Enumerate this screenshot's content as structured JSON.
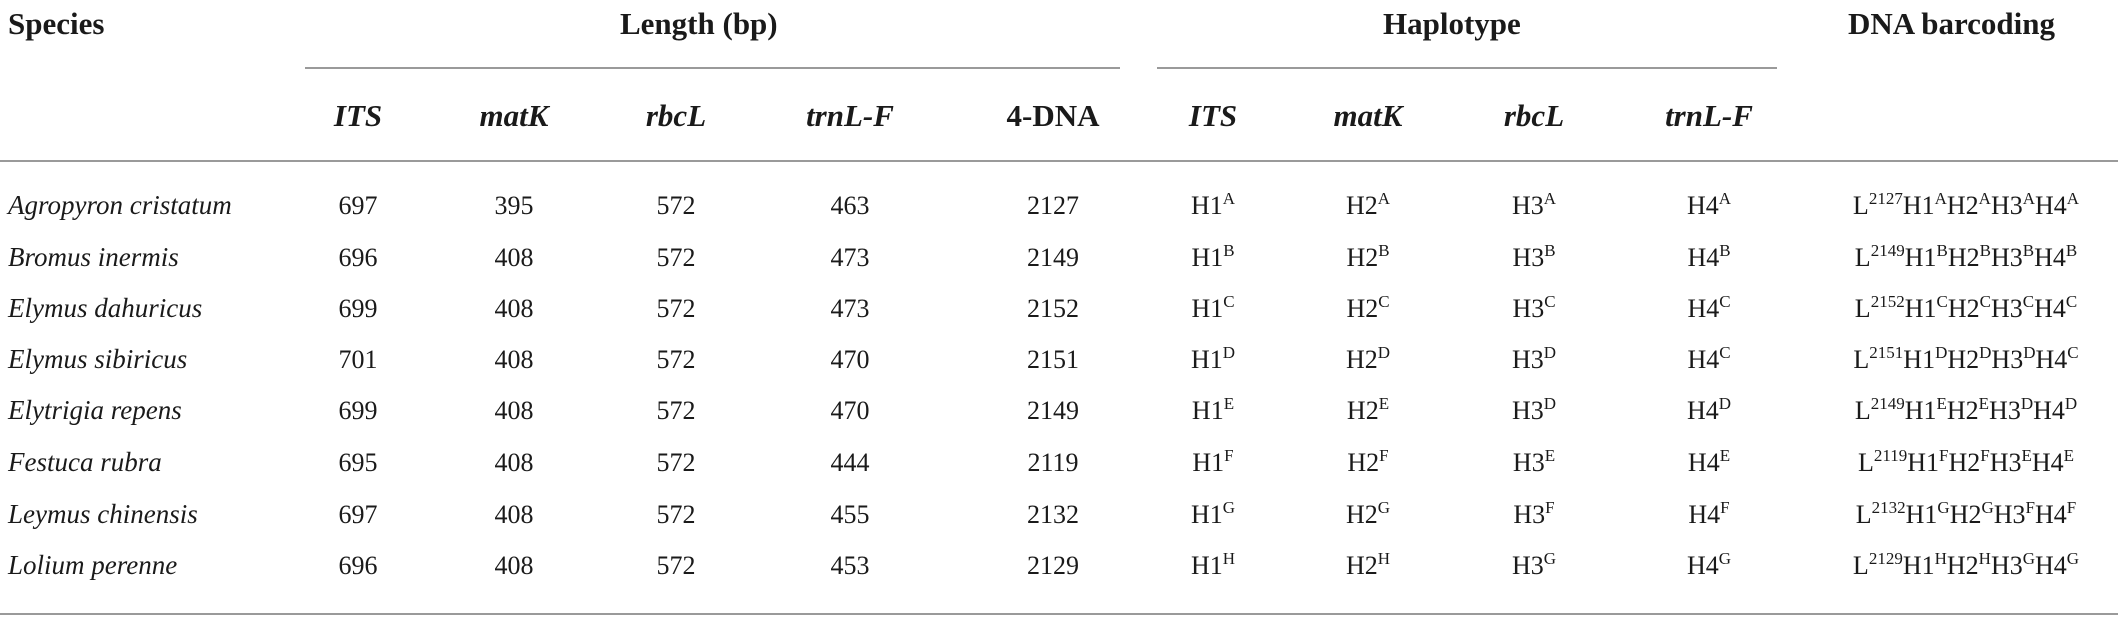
{
  "headers": {
    "species": "Species",
    "length": "Length (bp)",
    "haplotype": "Haplotype",
    "barcoding": "DNA barcoding",
    "length_sub": [
      "ITS",
      "matK",
      "rbcL",
      "trnL-F",
      "4-DNA"
    ],
    "haplotype_sub": [
      "ITS",
      "matK",
      "rbcL",
      "trnL-F"
    ]
  },
  "rows": [
    {
      "species": "Agropyron cristatum",
      "lengths": [
        "697",
        "395",
        "572",
        "463",
        "2127"
      ],
      "haps": [
        [
          "H1",
          "A"
        ],
        [
          "H2",
          "A"
        ],
        [
          "H3",
          "A"
        ],
        [
          "H4",
          "A"
        ]
      ],
      "barcode": [
        [
          "L",
          "2127"
        ],
        [
          "H1",
          "A"
        ],
        [
          "H2",
          "A"
        ],
        [
          "H3",
          "A"
        ],
        [
          "H4",
          "A"
        ]
      ]
    },
    {
      "species": "Bromus inermis",
      "lengths": [
        "696",
        "408",
        "572",
        "473",
        "2149"
      ],
      "haps": [
        [
          "H1",
          "B"
        ],
        [
          "H2",
          "B"
        ],
        [
          "H3",
          "B"
        ],
        [
          "H4",
          "B"
        ]
      ],
      "barcode": [
        [
          "L",
          "2149"
        ],
        [
          "H1",
          "B"
        ],
        [
          "H2",
          "B"
        ],
        [
          "H3",
          "B"
        ],
        [
          "H4",
          "B"
        ]
      ]
    },
    {
      "species": "Elymus dahuricus",
      "lengths": [
        "699",
        "408",
        "572",
        "473",
        "2152"
      ],
      "haps": [
        [
          "H1",
          "C"
        ],
        [
          "H2",
          "C"
        ],
        [
          "H3",
          "C"
        ],
        [
          "H4",
          "C"
        ]
      ],
      "barcode": [
        [
          "L",
          "2152"
        ],
        [
          "H1",
          "C"
        ],
        [
          "H2",
          "C"
        ],
        [
          "H3",
          "C"
        ],
        [
          "H4",
          "C"
        ]
      ]
    },
    {
      "species": "Elymus sibiricus",
      "lengths": [
        "701",
        "408",
        "572",
        "470",
        "2151"
      ],
      "haps": [
        [
          "H1",
          "D"
        ],
        [
          "H2",
          "D"
        ],
        [
          "H3",
          "D"
        ],
        [
          "H4",
          "C"
        ]
      ],
      "barcode": [
        [
          "L",
          "2151"
        ],
        [
          "H1",
          "D"
        ],
        [
          "H2",
          "D"
        ],
        [
          "H3",
          "D"
        ],
        [
          "H4",
          "C"
        ]
      ]
    },
    {
      "species": "Elytrigia repens",
      "lengths": [
        "699",
        "408",
        "572",
        "470",
        "2149"
      ],
      "haps": [
        [
          "H1",
          "E"
        ],
        [
          "H2",
          "E"
        ],
        [
          "H3",
          "D"
        ],
        [
          "H4",
          "D"
        ]
      ],
      "barcode": [
        [
          "L",
          "2149"
        ],
        [
          "H1",
          "E"
        ],
        [
          "H2",
          "E"
        ],
        [
          "H3",
          "D"
        ],
        [
          "H4",
          "D"
        ]
      ]
    },
    {
      "species": "Festuca rubra",
      "lengths": [
        "695",
        "408",
        "572",
        "444",
        "2119"
      ],
      "haps": [
        [
          "H1",
          "F"
        ],
        [
          "H2",
          "F"
        ],
        [
          "H3",
          "E"
        ],
        [
          "H4",
          "E"
        ]
      ],
      "barcode": [
        [
          "L",
          "2119"
        ],
        [
          "H1",
          "F"
        ],
        [
          "H2",
          "F"
        ],
        [
          "H3",
          "E"
        ],
        [
          "H4",
          "E"
        ]
      ]
    },
    {
      "species": "Leymus chinensis",
      "lengths": [
        "697",
        "408",
        "572",
        "455",
        "2132"
      ],
      "haps": [
        [
          "H1",
          "G"
        ],
        [
          "H2",
          "G"
        ],
        [
          "H3",
          "F"
        ],
        [
          "H4",
          "F"
        ]
      ],
      "barcode": [
        [
          "L",
          "2132"
        ],
        [
          "H1",
          "G"
        ],
        [
          "H2",
          "G"
        ],
        [
          "H3",
          "F"
        ],
        [
          "H4",
          "F"
        ]
      ]
    },
    {
      "species": "Lolium perenne",
      "lengths": [
        "696",
        "408",
        "572",
        "453",
        "2129"
      ],
      "haps": [
        [
          "H1",
          "H"
        ],
        [
          "H2",
          "H"
        ],
        [
          "H3",
          "G"
        ],
        [
          "H4",
          "G"
        ]
      ],
      "barcode": [
        [
          "L",
          "2129"
        ],
        [
          "H1",
          "H"
        ],
        [
          "H2",
          "H"
        ],
        [
          "H3",
          "G"
        ],
        [
          "H4",
          "G"
        ]
      ]
    }
  ]
}
